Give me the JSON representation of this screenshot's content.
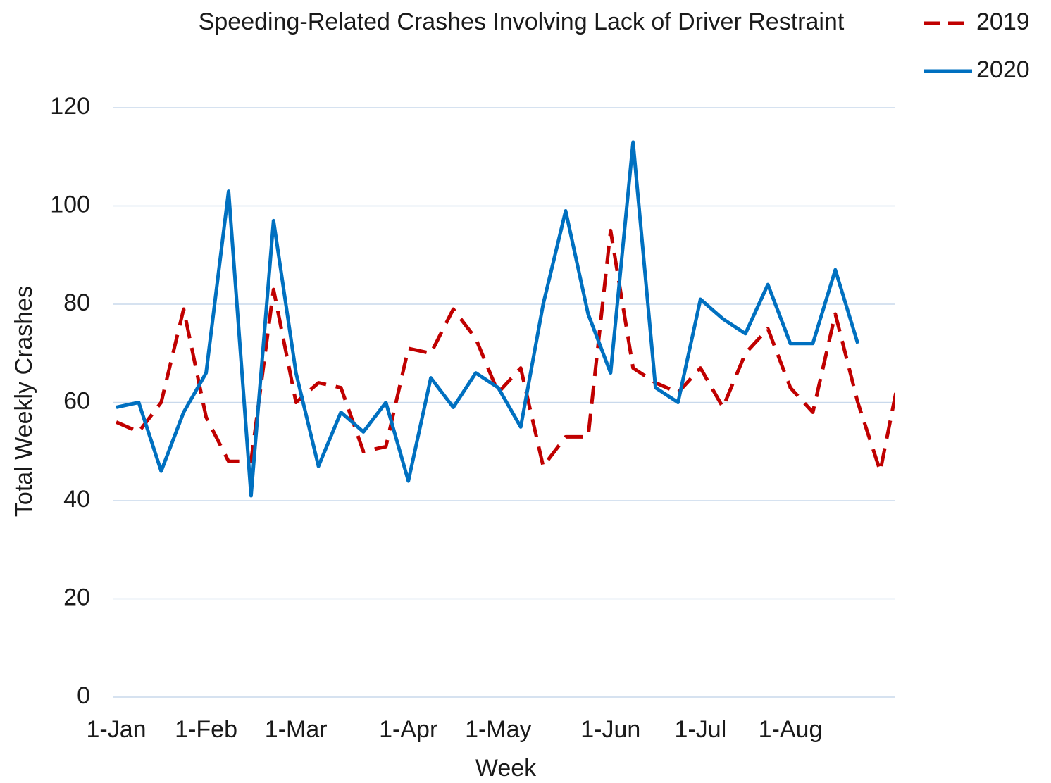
{
  "chart_data": {
    "type": "line",
    "title": "Speeding-Related Crashes Involving Lack of Driver Restraint",
    "x_label": "Week",
    "y_label": "Total Weekly Crashes",
    "categories": [
      "1-Jan",
      null,
      null,
      null,
      "1-Feb",
      null,
      null,
      null,
      "1-Mar",
      null,
      null,
      null,
      null,
      "1-Apr",
      null,
      null,
      null,
      "1-May",
      null,
      null,
      null,
      null,
      "1-Jun",
      null,
      null,
      null,
      "1-Jul",
      null,
      null,
      null,
      "1-Aug",
      null,
      null,
      null,
      null,
      null
    ],
    "series": [
      {
        "name": "2019",
        "color": "#c00000",
        "dashed": true,
        "values": [
          56,
          54,
          60,
          79,
          57,
          48,
          48,
          83,
          60,
          64,
          63,
          50,
          51,
          71,
          70,
          79,
          73,
          62,
          67,
          47,
          53,
          53,
          95,
          67,
          64,
          62,
          67,
          59,
          70,
          75,
          63,
          58,
          78,
          60,
          46,
          69
        ]
      },
      {
        "name": "2020",
        "color": "#0070c0",
        "dashed": false,
        "values": [
          59,
          60,
          46,
          58,
          66,
          103,
          41,
          97,
          66,
          47,
          58,
          54,
          60,
          44,
          65,
          59,
          66,
          63,
          55,
          80,
          99,
          78,
          66,
          113,
          63,
          60,
          81,
          77,
          74,
          84,
          72,
          72,
          87,
          72,
          null,
          null
        ]
      }
    ],
    "ylim": [
      0,
      120
    ],
    "yticks": [
      0,
      20,
      40,
      60,
      80,
      100,
      120
    ],
    "grid": true,
    "legend": "top-right"
  }
}
